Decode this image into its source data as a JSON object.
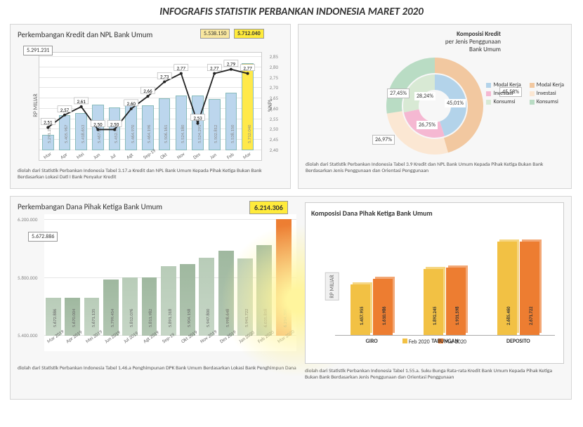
{
  "title": "INFOGRAFIS STATISTIK PERBANKAN INDONESIA MARET 2020",
  "chart1": {
    "title": "Perkembangan Kredit dan NPL Bank Umum",
    "callout_left": "5.291.231",
    "callout_mid": "5.538.150",
    "callout_right": "5.712.040",
    "months": [
      "Mar",
      "Apr",
      "Mei",
      "Jun",
      "Jul",
      "Agt",
      "Sep-19",
      "Okt",
      "Nov",
      "Des",
      "Jan",
      "Feb",
      "Mar"
    ],
    "credit_bars": [
      5291231,
      5405967,
      5418653,
      5467056,
      5452575,
      5464970,
      5464196,
      5506161,
      5524180,
      5524291,
      5502812,
      5538150,
      5712040
    ],
    "credit_labels": [
      "5.291.231",
      "5.405.967",
      "5.418.653",
      "5.467.056",
      "5.452.575",
      "5.464.970",
      "5.464.196",
      "5.506.161",
      "5.524.180",
      "5.524.291",
      "5.502.812",
      "5.538.150",
      "5.712.040"
    ],
    "npl": [
      2.51,
      2.57,
      2.61,
      2.5,
      2.5,
      2.6,
      2.66,
      2.73,
      2.77,
      2.53,
      2.77,
      2.79,
      2.77
    ],
    "bar_color": "#bcd6ed",
    "bar_color_last": "#ffe94a",
    "line_color": "#222",
    "y1_label": "RP MILIAR",
    "y2_label": "%NPL",
    "ylim2": [
      2.4,
      2.85
    ],
    "footnote": "diolah dari Statistik Perbankan Indonesia Tabel 3.17.a Kredit dan NPL Bank Umum Kepada Pihak Ketiga Bukan Bank Berdasarkan Lokasi Dati I Bank Penyalur Kredit"
  },
  "chart2": {
    "title": "Komposisi Kredit",
    "subtitle": "per Jenis Penggunaan",
    "subtitle2": "Bank Umum",
    "outer": [
      {
        "label": "Modal Kerja",
        "value": 45.58,
        "color": "#f2c8a0"
      },
      {
        "label": "Investasi",
        "value": 26.97,
        "color": "#fbe7d3"
      },
      {
        "label": "Konsumsi",
        "value": 27.45,
        "color": "#b9dcc4"
      }
    ],
    "inner": [
      {
        "label": "Modal Kerja",
        "value": 45.01,
        "color": "#b3d3ea"
      },
      {
        "label": "Investasi",
        "value": 26.75,
        "color": "#f5b8d2"
      },
      {
        "label": "Konsumsi",
        "value": 28.24,
        "color": "#d8e9d4"
      }
    ],
    "outer_labels": [
      "45,58%",
      "26,97%",
      "27,45%"
    ],
    "inner_labels": [
      "45,01%",
      "26,75%",
      "28,24%"
    ],
    "legend_outer": [
      "Modal Kerja",
      "Investasi",
      "Konsumsi"
    ],
    "legend_inner": [
      "Modal Kerja",
      "Investasi",
      "Konsumsi"
    ],
    "footnote": "diolah dari Statistik Perbankan Indonesia Tabel 3.9 Kredit dan NPL Bank Umum Kepada Pihak Ketiga Bukan Bank Berdasarkan Jenis Penggunaan dan Orientasi Penggunaan"
  },
  "chart3": {
    "title": "Perkembangan Dana Pihak Ketiga Bank Umum",
    "callout_left": "5.672.886",
    "callout_right": "6.214.306",
    "months": [
      "Mar 2019",
      "Apr 2019",
      "Mei 2019",
      "Jun 2019",
      "Jul 2019",
      "Agt 2019",
      "Sep-19",
      "Okt 2019",
      "Nov 2019",
      "Des 2019",
      "Jan 2020",
      "Feb 2020",
      "Mar 2020"
    ],
    "values": [
      5672886,
      5670004,
      5671135,
      5799454,
      5812076,
      5811982,
      5891318,
      5904158,
      5947800,
      5998648,
      5941722,
      6035858,
      6214306
    ],
    "labels": [
      "5.672.886",
      "5.670.004",
      "5.671.135",
      "5.799.454",
      "5.812.076",
      "5.811.982",
      "5.891.318",
      "5.904.158",
      "5.947.800",
      "5.998.648",
      "5.941.722",
      "6.035.858",
      "6.214.306"
    ],
    "bar_color": "#9fb89f",
    "bar_color_alt": "#b8ccb8",
    "bar_color_last": "#ed7d31",
    "ylim": [
      5400000,
      6200000
    ],
    "yticks": [
      "5.400.000",
      "5.800.000",
      "6.200.000"
    ],
    "footnote": "diolah dari Statistik Perbankan Indonesia Tabel 1.46.a Penghimpunan DPK Bank Umum Berdasarkan Lokasi Bank Penghimpun Dana"
  },
  "chart4": {
    "title": "Komposisi Dana Pihak Ketiga Bank Umum",
    "categories": [
      "GIRO",
      "TABUNGAN",
      "DEPOSITO"
    ],
    "series": [
      {
        "name": "Feb 2020",
        "color": "#f2c144",
        "values": [
          1457955,
          1892245,
          2685460
        ],
        "labels": [
          "1.457.955",
          "1.892.245",
          "2.685.460"
        ]
      },
      {
        "name": "Mar 2020",
        "color": "#ed7d31",
        "values": [
          1610986,
          1931598,
          2671722
        ],
        "labels": [
          "1.610.986",
          "1.931.598",
          "2.671.722"
        ]
      }
    ],
    "ylabel": "RP MILIAR",
    "footnote": "diolah dari Statistik Perbankan Indonesia Tabel 1.55.a. Suku Bunga Rata-rata Kredit Bank Umum Kepada Pihak Ketiga Bukan Bank Berdasarkan Jenis Penggunaan dan Orientasi Penggunaan"
  }
}
